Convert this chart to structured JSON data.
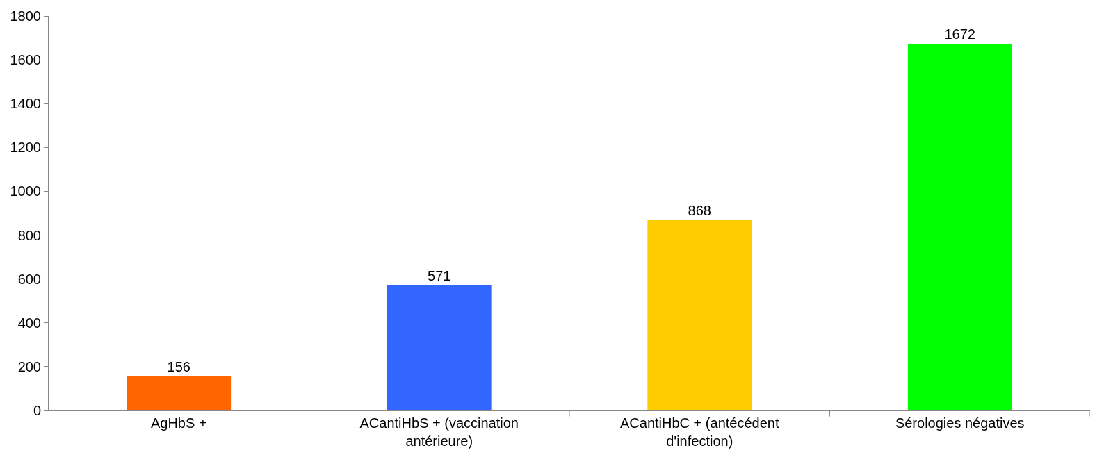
{
  "chart_data": {
    "type": "bar",
    "categories": [
      "AgHbS +",
      "ACantiHbS + (vaccination antérieure)",
      "ACantiHbC + (antécédent d'infection)",
      "Sérologies négatives"
    ],
    "values": [
      156,
      571,
      868,
      1672
    ],
    "colors": [
      "#ff6600",
      "#3366ff",
      "#ffcc00",
      "#00ff00"
    ],
    "ylim": [
      0,
      1800
    ],
    "yticks": [
      0,
      200,
      400,
      600,
      800,
      1000,
      1200,
      1400,
      1600,
      1800
    ],
    "data_labels": true
  }
}
